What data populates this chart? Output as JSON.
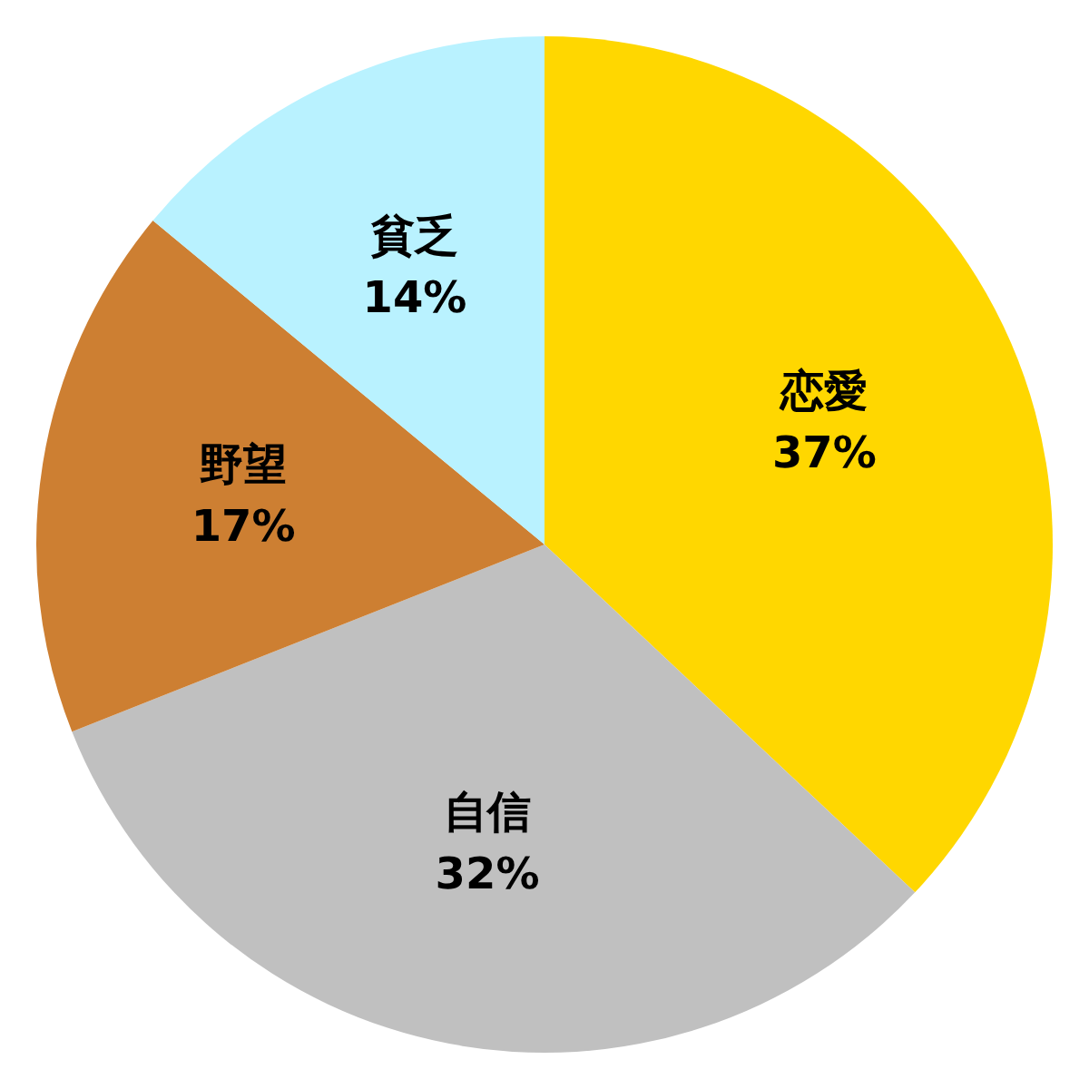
{
  "chart_data": {
    "type": "pie",
    "categories": [
      "恋愛",
      "自信",
      "野望",
      "貧乏"
    ],
    "values": [
      37,
      32,
      17,
      14
    ],
    "colors": [
      "#ffd700",
      "#c0c0c0",
      "#cd7f32",
      "#b9f2ff"
    ],
    "value_labels": [
      "37%",
      "32%",
      "17%",
      "14%"
    ],
    "legend": false
  }
}
